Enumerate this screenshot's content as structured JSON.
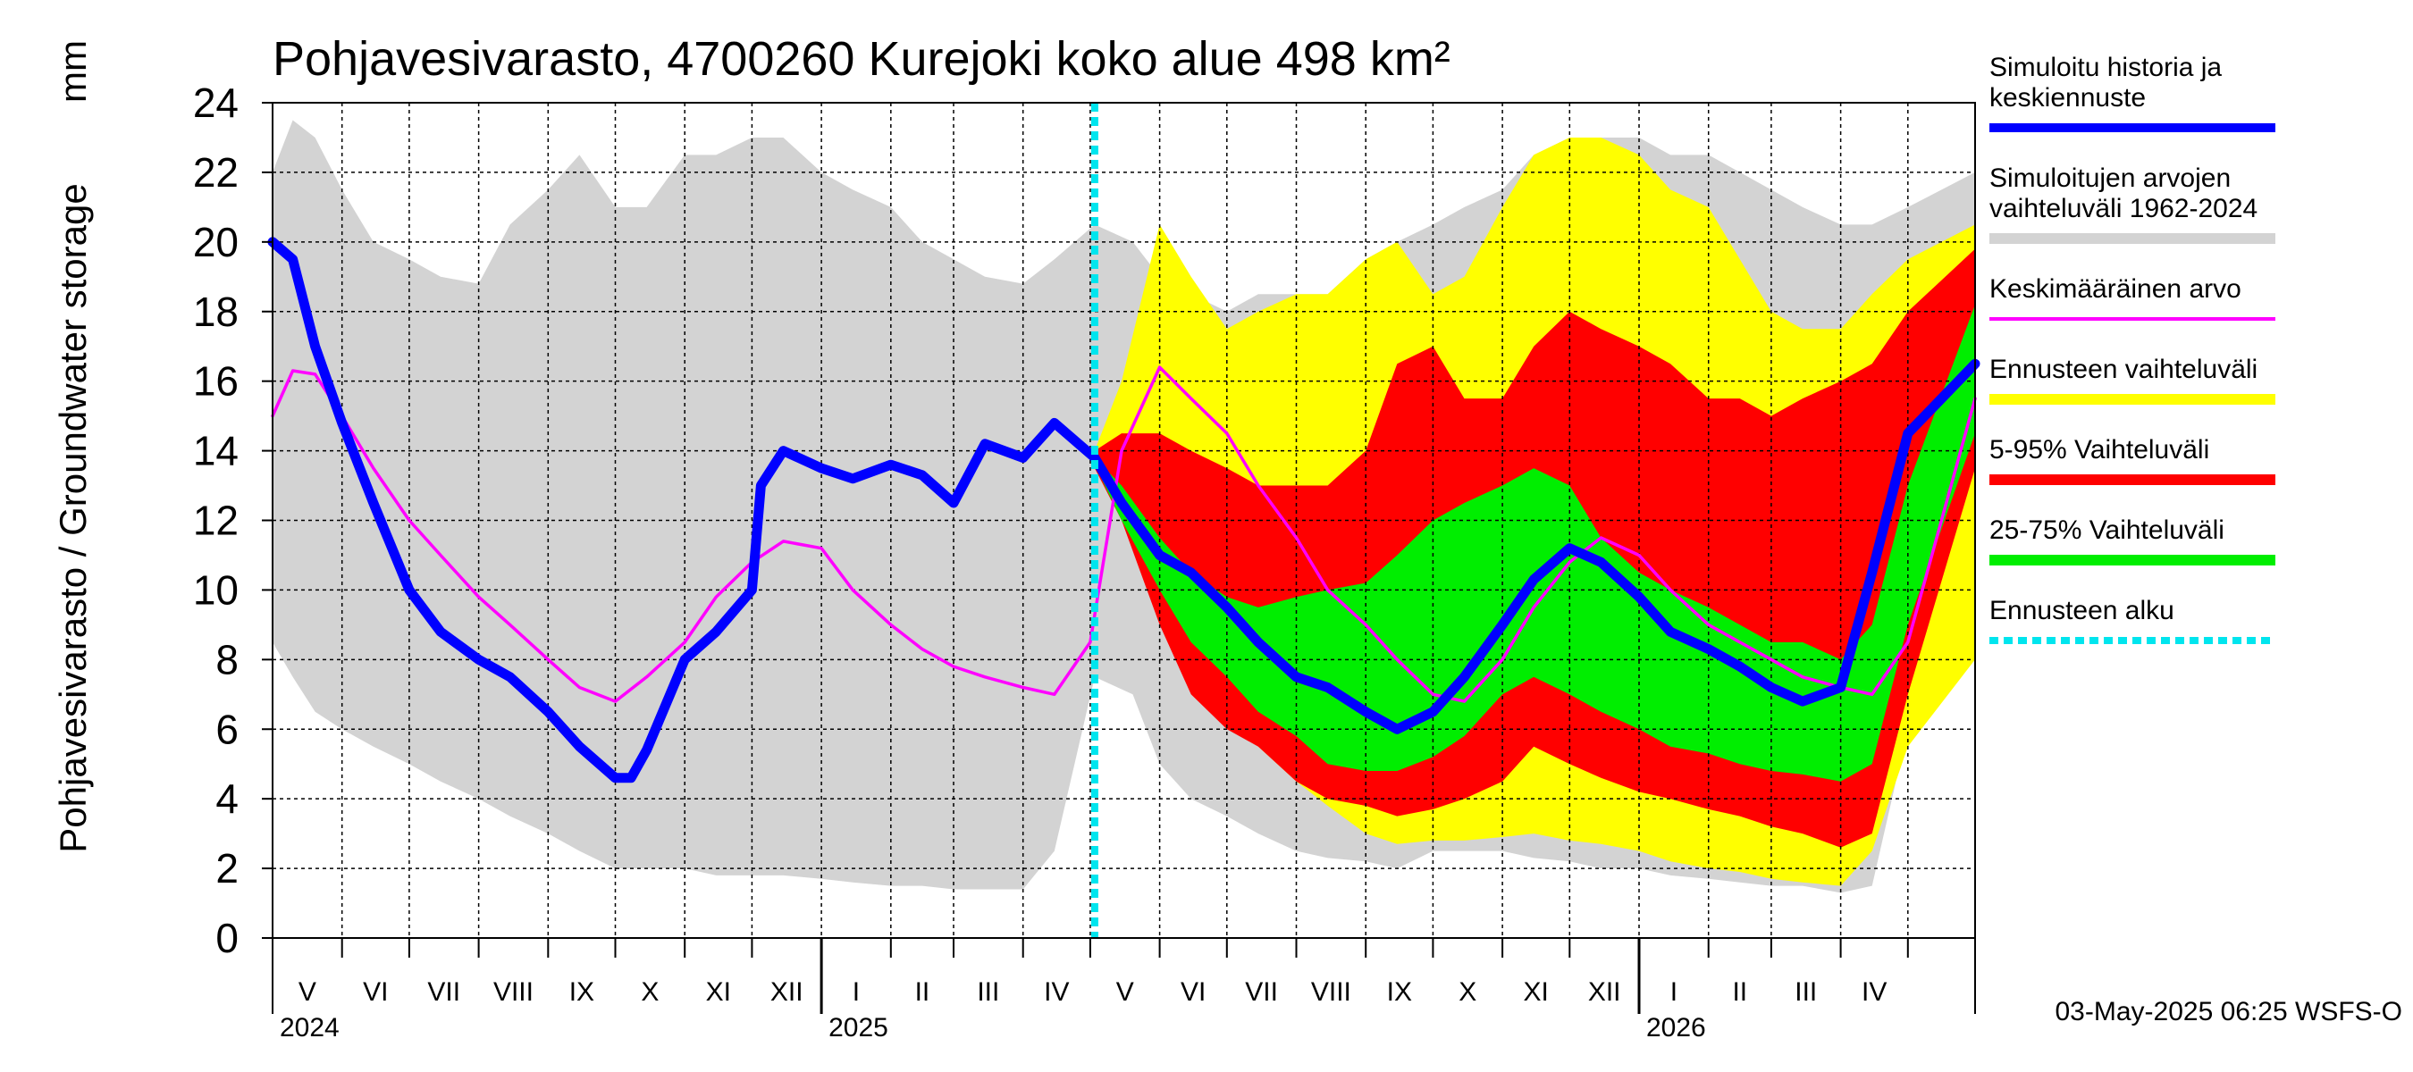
{
  "chart_data": {
    "type": "area",
    "title": "Pohjavesivarasto, 4700260 Kurejoki koko alue 498 km²",
    "ylabel": "Pohjavesivarasto / Groundwater storage",
    "yunit": "mm",
    "ylim": [
      0,
      24
    ],
    "yticks": [
      0,
      2,
      4,
      6,
      8,
      10,
      12,
      14,
      16,
      18,
      20,
      22,
      24
    ],
    "x_range": [
      "2024-05-01",
      "2026-05-31"
    ],
    "grid": true,
    "legend_position": "right",
    "months": [
      {
        "label": "V",
        "start": "2024-05-01"
      },
      {
        "label": "VI",
        "start": "2024-06-01"
      },
      {
        "label": "VII",
        "start": "2024-07-01"
      },
      {
        "label": "VIII",
        "start": "2024-08-01"
      },
      {
        "label": "IX",
        "start": "2024-09-01"
      },
      {
        "label": "X",
        "start": "2024-10-01"
      },
      {
        "label": "XI",
        "start": "2024-11-01"
      },
      {
        "label": "XII",
        "start": "2024-12-01"
      },
      {
        "label": "I",
        "start": "2025-01-01"
      },
      {
        "label": "II",
        "start": "2025-02-01"
      },
      {
        "label": "III",
        "start": "2025-03-01"
      },
      {
        "label": "IV",
        "start": "2025-04-01"
      },
      {
        "label": "V",
        "start": "2025-05-01"
      },
      {
        "label": "VI",
        "start": "2025-06-01"
      },
      {
        "label": "VII",
        "start": "2025-07-01"
      },
      {
        "label": "VIII",
        "start": "2025-08-01"
      },
      {
        "label": "IX",
        "start": "2025-09-01"
      },
      {
        "label": "X",
        "start": "2025-10-01"
      },
      {
        "label": "XI",
        "start": "2025-11-01"
      },
      {
        "label": "XII",
        "start": "2025-12-01"
      },
      {
        "label": "I",
        "start": "2026-01-01"
      },
      {
        "label": "II",
        "start": "2026-02-01"
      },
      {
        "label": "III",
        "start": "2026-03-01"
      },
      {
        "label": "IV",
        "start": "2026-04-01"
      },
      {
        "label": "",
        "start": "2026-05-01"
      }
    ],
    "years": [
      {
        "label": "2024",
        "date": "2024-05-01"
      },
      {
        "label": "2025",
        "date": "2025-01-01"
      },
      {
        "label": "2026",
        "date": "2026-01-01"
      }
    ],
    "forecast_start": "2025-05-03",
    "series": [
      {
        "name": "Simuloitujen arvojen vaihteluväli 1962-2024",
        "kind": "band",
        "color": "#d3d3d3",
        "x": [
          "2024-05-01",
          "2024-05-10",
          "2024-05-20",
          "2024-06-01",
          "2024-06-15",
          "2024-07-01",
          "2024-07-15",
          "2024-08-01",
          "2024-08-15",
          "2024-09-01",
          "2024-09-15",
          "2024-10-01",
          "2024-10-15",
          "2024-11-01",
          "2024-11-15",
          "2024-12-01",
          "2024-12-15",
          "2025-01-01",
          "2025-01-15",
          "2025-02-01",
          "2025-02-15",
          "2025-03-01",
          "2025-03-15",
          "2025-04-01",
          "2025-04-15",
          "2025-05-03",
          "2025-05-20",
          "2025-06-01",
          "2025-06-15",
          "2025-07-01",
          "2025-07-15",
          "2025-08-01",
          "2025-08-15",
          "2025-09-01",
          "2025-09-15",
          "2025-10-01",
          "2025-10-15",
          "2025-11-01",
          "2025-11-15",
          "2025-12-01",
          "2025-12-15",
          "2026-01-01",
          "2026-01-15",
          "2026-02-01",
          "2026-02-15",
          "2026-03-01",
          "2026-03-15",
          "2026-04-01",
          "2026-04-15",
          "2026-05-01",
          "2026-05-31"
        ],
        "upper": [
          22.0,
          23.5,
          23.0,
          21.5,
          20.0,
          19.5,
          19.0,
          18.8,
          20.5,
          21.5,
          22.5,
          21.0,
          21.0,
          22.5,
          22.5,
          23.0,
          23.0,
          22.0,
          21.5,
          21.0,
          20.0,
          19.5,
          19.0,
          18.8,
          19.5,
          20.5,
          20.0,
          19.0,
          18.5,
          18.0,
          18.5,
          18.5,
          18.5,
          19.5,
          20.0,
          20.5,
          21.0,
          21.5,
          22.5,
          23.0,
          23.0,
          23.0,
          22.5,
          22.5,
          22.0,
          21.5,
          21.0,
          20.5,
          20.5,
          21.0,
          22.0
        ],
        "lower": [
          8.5,
          7.5,
          6.5,
          6.0,
          5.5,
          5.0,
          4.5,
          4.0,
          3.5,
          3.0,
          2.5,
          2.0,
          2.0,
          2.0,
          1.8,
          1.8,
          1.8,
          1.7,
          1.6,
          1.5,
          1.5,
          1.4,
          1.4,
          1.4,
          2.5,
          7.5,
          7.0,
          5.0,
          4.0,
          3.5,
          3.0,
          2.5,
          2.3,
          2.2,
          2.0,
          2.5,
          2.5,
          2.5,
          2.3,
          2.2,
          2.0,
          2.0,
          1.8,
          1.7,
          1.6,
          1.5,
          1.5,
          1.3,
          1.5,
          6.0,
          10.5
        ]
      },
      {
        "name": "Ennusteen vaihteluväli",
        "kind": "band",
        "color": "#ffff00",
        "x": [
          "2025-05-03",
          "2025-05-15",
          "2025-06-01",
          "2025-06-15",
          "2025-07-01",
          "2025-07-15",
          "2025-08-01",
          "2025-08-15",
          "2025-09-01",
          "2025-09-15",
          "2025-10-01",
          "2025-10-15",
          "2025-11-01",
          "2025-11-15",
          "2025-12-01",
          "2025-12-15",
          "2026-01-01",
          "2026-01-15",
          "2026-02-01",
          "2026-02-15",
          "2026-03-01",
          "2026-03-15",
          "2026-04-01",
          "2026-04-15",
          "2026-05-01",
          "2026-05-31"
        ],
        "upper": [
          14.0,
          16.0,
          20.5,
          19.0,
          17.5,
          18.0,
          18.5,
          18.5,
          19.5,
          20.0,
          18.5,
          19.0,
          21.0,
          22.5,
          23.0,
          23.0,
          22.5,
          21.5,
          21.0,
          19.5,
          18.0,
          17.5,
          17.5,
          18.5,
          19.5,
          20.5
        ],
        "lower": [
          13.5,
          12.5,
          11.5,
          10.0,
          8.0,
          5.5,
          4.5,
          3.8,
          3.0,
          2.7,
          2.8,
          2.8,
          2.9,
          3.0,
          2.8,
          2.7,
          2.5,
          2.2,
          2.0,
          1.9,
          1.7,
          1.6,
          1.5,
          2.5,
          5.5,
          8.0
        ]
      },
      {
        "name": "5-95% Vaihteluväli",
        "kind": "band",
        "color": "#ff0000",
        "x": [
          "2025-05-03",
          "2025-05-15",
          "2025-06-01",
          "2025-06-15",
          "2025-07-01",
          "2025-07-15",
          "2025-08-01",
          "2025-08-15",
          "2025-09-01",
          "2025-09-15",
          "2025-10-01",
          "2025-10-15",
          "2025-11-01",
          "2025-11-15",
          "2025-12-01",
          "2025-12-15",
          "2026-01-01",
          "2026-01-15",
          "2026-02-01",
          "2026-02-15",
          "2026-03-01",
          "2026-03-15",
          "2026-04-01",
          "2026-04-15",
          "2026-05-01",
          "2026-05-31"
        ],
        "upper": [
          14.0,
          14.5,
          14.5,
          14.0,
          13.5,
          13.0,
          13.0,
          13.0,
          14.0,
          16.5,
          17.0,
          15.5,
          15.5,
          17.0,
          18.0,
          17.5,
          17.0,
          16.5,
          15.5,
          15.5,
          15.0,
          15.5,
          16.0,
          16.5,
          18.0,
          19.8
        ],
        "lower": [
          13.5,
          12.0,
          9.0,
          7.0,
          6.0,
          5.5,
          4.5,
          4.0,
          3.8,
          3.5,
          3.7,
          4.0,
          4.5,
          5.5,
          5.0,
          4.6,
          4.2,
          4.0,
          3.7,
          3.5,
          3.2,
          3.0,
          2.6,
          3.0,
          7.0,
          13.5
        ]
      },
      {
        "name": "25-75% Vaihteluväli",
        "kind": "band",
        "color": "#00ee00",
        "x": [
          "2025-05-03",
          "2025-05-15",
          "2025-06-01",
          "2025-06-15",
          "2025-07-01",
          "2025-07-15",
          "2025-08-01",
          "2025-08-15",
          "2025-09-01",
          "2025-09-15",
          "2025-10-01",
          "2025-10-15",
          "2025-11-01",
          "2025-11-15",
          "2025-12-01",
          "2025-12-15",
          "2026-01-01",
          "2026-01-15",
          "2026-02-01",
          "2026-02-15",
          "2026-03-01",
          "2026-03-15",
          "2026-04-01",
          "2026-04-15",
          "2026-05-01",
          "2026-05-31"
        ],
        "upper": [
          13.8,
          13.0,
          11.5,
          10.5,
          9.8,
          9.5,
          9.8,
          10.0,
          10.2,
          11.0,
          12.0,
          12.5,
          13.0,
          13.5,
          13.0,
          11.5,
          10.5,
          10.0,
          9.5,
          9.0,
          8.5,
          8.5,
          8.0,
          9.0,
          13.0,
          18.2
        ],
        "lower": [
          13.6,
          12.0,
          10.0,
          8.5,
          7.5,
          6.5,
          5.8,
          5.0,
          4.8,
          4.8,
          5.2,
          5.8,
          7.0,
          7.5,
          7.0,
          6.5,
          6.0,
          5.5,
          5.3,
          5.0,
          4.8,
          4.7,
          4.5,
          5.0,
          9.0,
          14.5
        ]
      },
      {
        "name": "Keskimääräinen arvo",
        "kind": "line",
        "color": "#ff00ff",
        "x": [
          "2024-05-01",
          "2024-05-10",
          "2024-05-20",
          "2024-06-01",
          "2024-06-15",
          "2024-07-01",
          "2024-07-15",
          "2024-08-01",
          "2024-08-15",
          "2024-09-01",
          "2024-09-15",
          "2024-10-01",
          "2024-10-15",
          "2024-11-01",
          "2024-11-15",
          "2024-12-01",
          "2024-12-15",
          "2025-01-01",
          "2025-01-15",
          "2025-02-01",
          "2025-02-15",
          "2025-03-01",
          "2025-03-15",
          "2025-04-01",
          "2025-04-15",
          "2025-05-01",
          "2025-05-15",
          "2025-06-01",
          "2025-06-15",
          "2025-07-01",
          "2025-07-15",
          "2025-08-01",
          "2025-08-15",
          "2025-09-01",
          "2025-09-15",
          "2025-10-01",
          "2025-10-15",
          "2025-11-01",
          "2025-11-15",
          "2025-12-01",
          "2025-12-15",
          "2026-01-01",
          "2026-01-15",
          "2026-02-01",
          "2026-02-15",
          "2026-03-01",
          "2026-03-15",
          "2026-04-01",
          "2026-04-15",
          "2026-05-01",
          "2026-05-31"
        ],
        "values": [
          15.0,
          16.3,
          16.2,
          15.0,
          13.5,
          12.0,
          11.0,
          9.8,
          9.0,
          8.0,
          7.2,
          6.8,
          7.5,
          8.5,
          9.8,
          10.8,
          11.4,
          11.2,
          10.0,
          9.0,
          8.3,
          7.8,
          7.5,
          7.2,
          7.0,
          8.5,
          14.0,
          16.4,
          15.5,
          14.5,
          13.0,
          11.5,
          10.0,
          9.0,
          8.0,
          7.0,
          6.8,
          8.0,
          9.5,
          10.8,
          11.5,
          11.0,
          10.0,
          9.0,
          8.5,
          8.0,
          7.5,
          7.2,
          7.0,
          8.5,
          15.5
        ]
      },
      {
        "name": "Simuloitu historia ja keskiennuste",
        "kind": "line",
        "color": "#0000ff",
        "x": [
          "2024-05-01",
          "2024-05-10",
          "2024-05-20",
          "2024-06-01",
          "2024-06-15",
          "2024-07-01",
          "2024-07-15",
          "2024-08-01",
          "2024-08-15",
          "2024-09-01",
          "2024-09-15",
          "2024-10-01",
          "2024-10-08",
          "2024-10-15",
          "2024-11-01",
          "2024-11-15",
          "2024-12-01",
          "2024-12-05",
          "2024-12-15",
          "2025-01-01",
          "2025-01-15",
          "2025-02-01",
          "2025-02-15",
          "2025-03-01",
          "2025-03-15",
          "2025-04-01",
          "2025-04-15",
          "2025-05-03",
          "2025-05-15",
          "2025-06-01",
          "2025-06-15",
          "2025-07-01",
          "2025-07-15",
          "2025-08-01",
          "2025-08-15",
          "2025-09-01",
          "2025-09-15",
          "2025-10-01",
          "2025-10-15",
          "2025-11-01",
          "2025-11-15",
          "2025-12-01",
          "2025-12-15",
          "2026-01-01",
          "2026-01-15",
          "2026-02-01",
          "2026-02-15",
          "2026-03-01",
          "2026-03-15",
          "2026-04-01",
          "2026-04-15",
          "2026-05-01",
          "2026-05-31"
        ],
        "values": [
          20.0,
          19.5,
          17.0,
          14.8,
          12.5,
          10.0,
          8.8,
          8.0,
          7.5,
          6.5,
          5.5,
          4.6,
          4.6,
          5.4,
          8.0,
          8.8,
          10.0,
          13.0,
          14.0,
          13.5,
          13.2,
          13.6,
          13.3,
          12.5,
          14.2,
          13.8,
          14.8,
          13.8,
          12.5,
          11.0,
          10.5,
          9.5,
          8.5,
          7.5,
          7.2,
          6.5,
          6.0,
          6.5,
          7.5,
          9.0,
          10.3,
          11.2,
          10.8,
          9.8,
          8.8,
          8.3,
          7.8,
          7.2,
          6.8,
          7.2,
          10.5,
          14.5,
          16.5
        ]
      },
      {
        "name": "Ennusteen alku",
        "kind": "vline",
        "color": "#00e5ee",
        "date": "2025-05-03"
      }
    ],
    "footer": "03-May-2025 06:25 WSFS-O"
  }
}
